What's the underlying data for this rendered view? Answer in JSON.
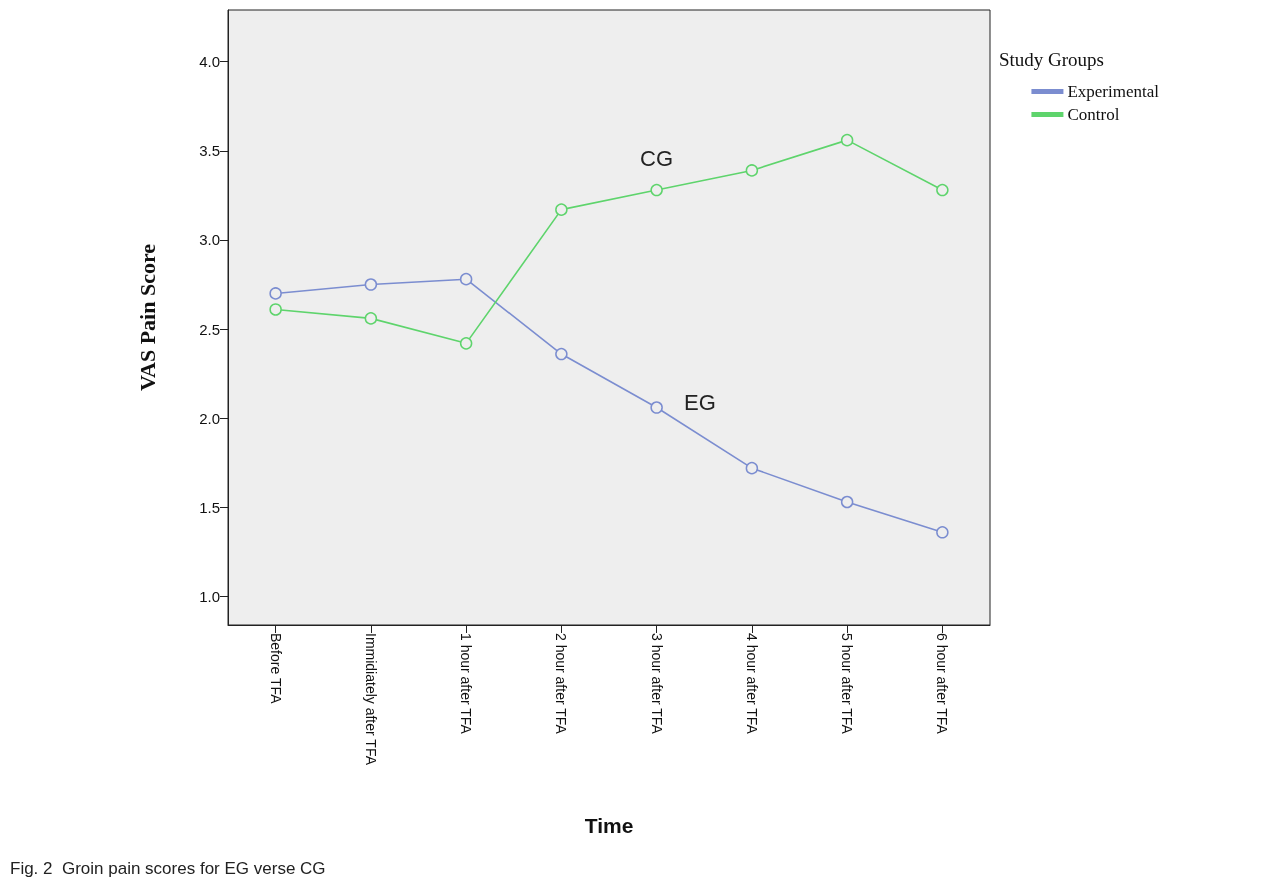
{
  "chart_data": {
    "type": "line",
    "xlabel": "Time",
    "ylabel": "VAS Pain Score",
    "legend_title": "Study Groups",
    "legend": "top right",
    "marker": "circle",
    "line_style": "solid",
    "grid": false,
    "categories": [
      "Before TFA",
      "Immidiately after TFA",
      "1 hour after TFA",
      "2 hour after TFA",
      "3 hour after TFA",
      "4 hour after TFA",
      "5 hour after TFA",
      "6 hour after TFA"
    ],
    "series": [
      {
        "name": "Experimental",
        "color": "#7b8dd0",
        "values": [
          2.7,
          2.75,
          2.78,
          2.36,
          2.06,
          1.72,
          1.53,
          1.36
        ]
      },
      {
        "name": "Control",
        "color": "#5ed46c",
        "values": [
          2.61,
          2.56,
          2.42,
          3.17,
          3.28,
          3.39,
          3.56,
          3.28
        ]
      }
    ],
    "ylim": [
      0.84,
      4.29
    ],
    "yticks": [
      {
        "value": 1,
        "label": "1.0"
      },
      {
        "value": 1.5,
        "label": "1.5"
      },
      {
        "value": 2,
        "label": "2.0"
      },
      {
        "value": 2.5,
        "label": "2.5"
      },
      {
        "value": 3,
        "label": "3.0"
      },
      {
        "value": 3.5,
        "label": "3.5"
      },
      {
        "value": 4,
        "label": "4.0"
      }
    ],
    "annotations": [
      "CG",
      "EG",
      "Fig. 2  Groin pain scores for EG verse CG"
    ]
  }
}
